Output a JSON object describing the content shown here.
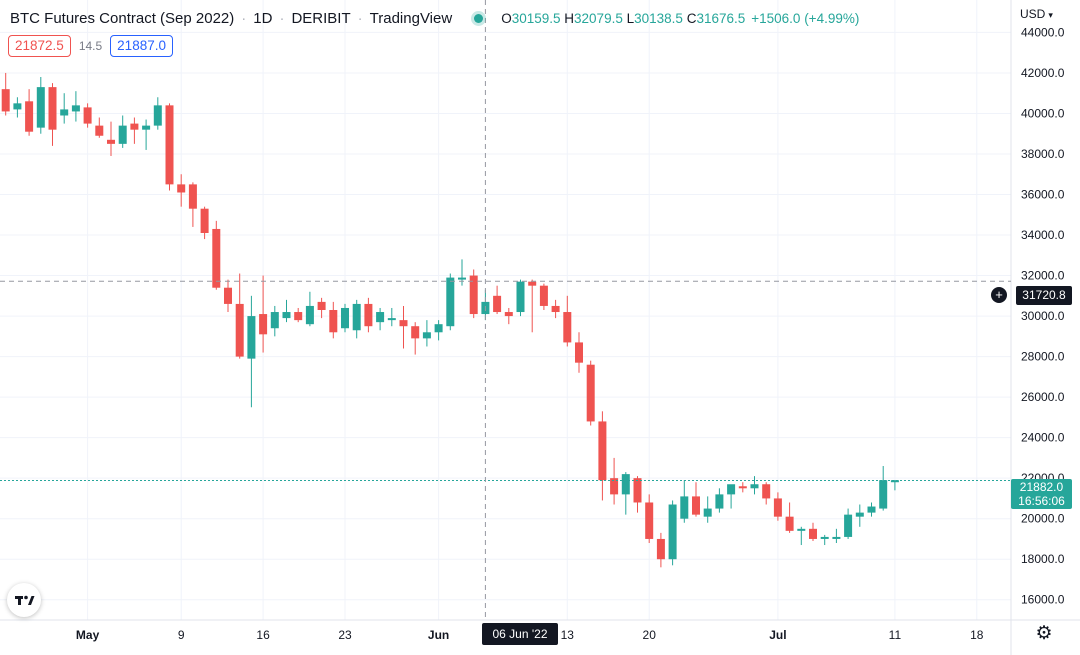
{
  "header": {
    "title": "BTC Futures Contract (Sep 2022)",
    "interval": "1D",
    "exchange": "DERIBIT",
    "provider": "TradingView",
    "open_key": "O",
    "open": "30159.5",
    "high_key": "H",
    "high": "32079.5",
    "low_key": "L",
    "low": "30138.5",
    "close_key": "C",
    "close": "31676.5",
    "change": "+1506.0 (+4.99%)"
  },
  "order_prices": {
    "bid": "21872.5",
    "spread": "14.5",
    "ask": "21887.0"
  },
  "currency": "USD",
  "crosshair": {
    "price_label": "31720.8",
    "date_label": "06 Jun '22",
    "price": 31720.8,
    "date_index": 42
  },
  "last_price": {
    "price_label": "21882.0",
    "countdown": "16:56:06",
    "price": 21882.0
  },
  "colors": {
    "up": "#26a69a",
    "down": "#ef5350",
    "grid": "#f0f3fa",
    "crosshair": "#9598a1",
    "last_line": "#26a69a"
  },
  "icons": {
    "crosshair_add": "plus-circle-icon",
    "settings": "gear-icon",
    "logo": "tradingview-logo-icon"
  },
  "chart_data": {
    "type": "candlestick",
    "title": "BTC Futures Contract (Sep 2022)",
    "y_range": [
      15000,
      45600
    ],
    "y_ticks": [
      16000,
      18000,
      20000,
      22000,
      24000,
      26000,
      28000,
      30000,
      32000,
      34000,
      36000,
      38000,
      40000,
      42000,
      44000
    ],
    "y_tick_labels": [
      "16000.0",
      "18000.0",
      "20000.0",
      "22000.0",
      "24000.0",
      "26000.0",
      "28000.0",
      "30000.0",
      "32000.0",
      "34000.0",
      "36000.0",
      "38000.0",
      "40000.0",
      "42000.0",
      "44000.0"
    ],
    "x_ticks": [
      {
        "label": "May",
        "index": 8
      },
      {
        "label": "9",
        "index": 16
      },
      {
        "label": "16",
        "index": 23
      },
      {
        "label": "23",
        "index": 30
      },
      {
        "label": "Jun",
        "index": 38
      },
      {
        "label": "13",
        "index": 49
      },
      {
        "label": "20",
        "index": 56
      },
      {
        "label": "Jul",
        "index": 67
      },
      {
        "label": "11",
        "index": 77
      },
      {
        "label": "18",
        "index": 84
      }
    ],
    "candles": [
      {
        "o": 42600,
        "h": 42800,
        "l": 41000,
        "c": 41200
      },
      {
        "o": 41200,
        "h": 42000,
        "l": 39900,
        "c": 40100
      },
      {
        "o": 40200,
        "h": 40800,
        "l": 39800,
        "c": 40500
      },
      {
        "o": 40600,
        "h": 41200,
        "l": 38900,
        "c": 39100
      },
      {
        "o": 39300,
        "h": 41800,
        "l": 39000,
        "c": 41300
      },
      {
        "o": 41300,
        "h": 41500,
        "l": 38400,
        "c": 39200
      },
      {
        "o": 39900,
        "h": 41000,
        "l": 39500,
        "c": 40200
      },
      {
        "o": 40100,
        "h": 41100,
        "l": 39600,
        "c": 40400
      },
      {
        "o": 40300,
        "h": 40500,
        "l": 39300,
        "c": 39500
      },
      {
        "o": 39400,
        "h": 39800,
        "l": 38800,
        "c": 38900
      },
      {
        "o": 38700,
        "h": 39600,
        "l": 37900,
        "c": 38500
      },
      {
        "o": 38500,
        "h": 39900,
        "l": 38300,
        "c": 39400
      },
      {
        "o": 39500,
        "h": 39800,
        "l": 38500,
        "c": 39200
      },
      {
        "o": 39200,
        "h": 39700,
        "l": 38200,
        "c": 39400
      },
      {
        "o": 39400,
        "h": 40800,
        "l": 39200,
        "c": 40400
      },
      {
        "o": 40400,
        "h": 40500,
        "l": 36200,
        "c": 36500
      },
      {
        "o": 36500,
        "h": 37000,
        "l": 35400,
        "c": 36100
      },
      {
        "o": 36500,
        "h": 36600,
        "l": 34400,
        "c": 35300
      },
      {
        "o": 35300,
        "h": 35400,
        "l": 33800,
        "c": 34100
      },
      {
        "o": 34300,
        "h": 34700,
        "l": 31300,
        "c": 31400
      },
      {
        "o": 31400,
        "h": 31800,
        "l": 30200,
        "c": 30600
      },
      {
        "o": 30600,
        "h": 32100,
        "l": 27900,
        "c": 28000
      },
      {
        "o": 27900,
        "h": 31000,
        "l": 25500,
        "c": 30000
      },
      {
        "o": 30100,
        "h": 32000,
        "l": 28200,
        "c": 29100
      },
      {
        "o": 29400,
        "h": 30500,
        "l": 29000,
        "c": 30200
      },
      {
        "o": 29900,
        "h": 30800,
        "l": 29700,
        "c": 30200
      },
      {
        "o": 30200,
        "h": 30400,
        "l": 29700,
        "c": 29800
      },
      {
        "o": 29600,
        "h": 31200,
        "l": 29500,
        "c": 30500
      },
      {
        "o": 30700,
        "h": 30900,
        "l": 29900,
        "c": 30300
      },
      {
        "o": 30300,
        "h": 30700,
        "l": 28900,
        "c": 29200
      },
      {
        "o": 29400,
        "h": 30600,
        "l": 29200,
        "c": 30400
      },
      {
        "o": 29300,
        "h": 30800,
        "l": 28900,
        "c": 30600
      },
      {
        "o": 30600,
        "h": 30900,
        "l": 29200,
        "c": 29500
      },
      {
        "o": 29700,
        "h": 30400,
        "l": 29300,
        "c": 30200
      },
      {
        "o": 29800,
        "h": 30400,
        "l": 29500,
        "c": 29900
      },
      {
        "o": 29800,
        "h": 30500,
        "l": 28400,
        "c": 29500
      },
      {
        "o": 29500,
        "h": 29700,
        "l": 28100,
        "c": 28900
      },
      {
        "o": 28900,
        "h": 29800,
        "l": 28500,
        "c": 29200
      },
      {
        "o": 29200,
        "h": 29800,
        "l": 28800,
        "c": 29600
      },
      {
        "o": 29500,
        "h": 32100,
        "l": 29300,
        "c": 31900
      },
      {
        "o": 31800,
        "h": 32800,
        "l": 31500,
        "c": 31900
      },
      {
        "o": 32000,
        "h": 32300,
        "l": 29900,
        "c": 30100
      },
      {
        "o": 30100,
        "h": 31300,
        "l": 29800,
        "c": 30700
      },
      {
        "o": 31000,
        "h": 31500,
        "l": 30100,
        "c": 30200
      },
      {
        "o": 30200,
        "h": 30400,
        "l": 29600,
        "c": 30000
      },
      {
        "o": 30200,
        "h": 31800,
        "l": 30000,
        "c": 31700
      },
      {
        "o": 31700,
        "h": 31800,
        "l": 29200,
        "c": 31500
      },
      {
        "o": 31500,
        "h": 31600,
        "l": 30300,
        "c": 30500
      },
      {
        "o": 30500,
        "h": 30800,
        "l": 29900,
        "c": 30200
      },
      {
        "o": 30200,
        "h": 31000,
        "l": 28500,
        "c": 28700
      },
      {
        "o": 28700,
        "h": 29200,
        "l": 27200,
        "c": 27700
      },
      {
        "o": 27600,
        "h": 27800,
        "l": 24600,
        "c": 24800
      },
      {
        "o": 24800,
        "h": 25300,
        "l": 20900,
        "c": 21900
      },
      {
        "o": 22000,
        "h": 23000,
        "l": 20700,
        "c": 21200
      },
      {
        "o": 21200,
        "h": 22300,
        "l": 20200,
        "c": 22200
      },
      {
        "o": 22000,
        "h": 22100,
        "l": 20300,
        "c": 20800
      },
      {
        "o": 20800,
        "h": 21200,
        "l": 18800,
        "c": 19000
      },
      {
        "o": 19000,
        "h": 19300,
        "l": 17600,
        "c": 18000
      },
      {
        "o": 18000,
        "h": 20900,
        "l": 17700,
        "c": 20700
      },
      {
        "o": 20000,
        "h": 21900,
        "l": 19800,
        "c": 21100
      },
      {
        "o": 21100,
        "h": 21800,
        "l": 20100,
        "c": 20200
      },
      {
        "o": 20100,
        "h": 21100,
        "l": 19800,
        "c": 20500
      },
      {
        "o": 20500,
        "h": 21500,
        "l": 20300,
        "c": 21200
      },
      {
        "o": 21200,
        "h": 21400,
        "l": 20500,
        "c": 21700
      },
      {
        "o": 21600,
        "h": 21800,
        "l": 21300,
        "c": 21500
      },
      {
        "o": 21500,
        "h": 22100,
        "l": 21200,
        "c": 21700
      },
      {
        "o": 21700,
        "h": 21800,
        "l": 20700,
        "c": 21000
      },
      {
        "o": 21000,
        "h": 21300,
        "l": 19900,
        "c": 20100
      },
      {
        "o": 20100,
        "h": 20800,
        "l": 19300,
        "c": 19400
      },
      {
        "o": 19400,
        "h": 19600,
        "l": 18700,
        "c": 19500
      },
      {
        "o": 19500,
        "h": 19800,
        "l": 18900,
        "c": 19000
      },
      {
        "o": 19000,
        "h": 19200,
        "l": 18700,
        "c": 19100
      },
      {
        "o": 19000,
        "h": 19500,
        "l": 18800,
        "c": 19100
      },
      {
        "o": 19100,
        "h": 20500,
        "l": 19000,
        "c": 20200
      },
      {
        "o": 20100,
        "h": 20700,
        "l": 19600,
        "c": 20300
      },
      {
        "o": 20300,
        "h": 20800,
        "l": 20100,
        "c": 20600
      },
      {
        "o": 20500,
        "h": 22600,
        "l": 20400,
        "c": 21900
      },
      {
        "o": 21800,
        "h": 21900,
        "l": 21400,
        "c": 21900
      }
    ]
  }
}
